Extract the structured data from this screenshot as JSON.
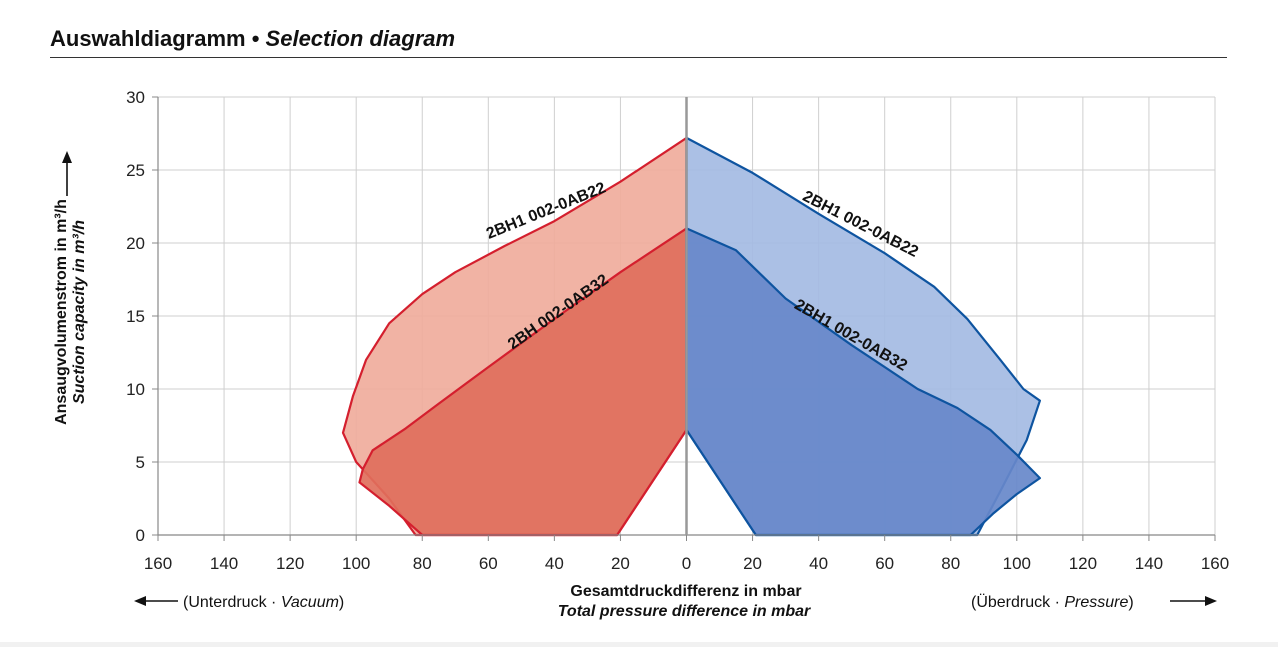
{
  "header": {
    "title_de": "Auswahldiagramm •",
    "title_en": "Selection diagram"
  },
  "chart_data": {
    "type": "area",
    "title": "Auswahldiagramm • Selection diagram",
    "xlabel": "Gesamtdruckdifferenz in mbar",
    "xlabel_en": "Total pressure difference in mbar",
    "ylabel": "Ansaugvolumenstrom in m³/h",
    "ylabel_en": "Suction capacity in m³/h",
    "xlim": [
      -160,
      160
    ],
    "ylim": [
      0,
      30
    ],
    "x_ticks": [
      -160,
      -140,
      -120,
      -100,
      -80,
      -60,
      -40,
      -20,
      0,
      20,
      40,
      60,
      80,
      100,
      120,
      140,
      160
    ],
    "x_tick_labels": [
      "160",
      "140",
      "120",
      "100",
      "80",
      "60",
      "40",
      "20",
      "0",
      "20",
      "40",
      "60",
      "80",
      "100",
      "120",
      "140",
      "160"
    ],
    "y_ticks": [
      0,
      5,
      10,
      15,
      20,
      25,
      30
    ],
    "y_tick_labels": [
      "0",
      "5",
      "10",
      "15",
      "20",
      "25",
      "30"
    ],
    "grid": true,
    "left_caption": {
      "de": "(Unterdruck ·",
      "en": "Vacuum",
      "close": ")"
    },
    "right_caption": {
      "de": "(Überdruck ·",
      "en": "Pressure",
      "close": ")"
    },
    "series": [
      {
        "name": "2BH1 002-0AB22",
        "side": "vacuum",
        "color": "#f0ac9c",
        "stroke": "#d41f2e",
        "points": [
          [
            0,
            27.2
          ],
          [
            -20,
            24.2
          ],
          [
            -40,
            21.5
          ],
          [
            -55,
            19.8
          ],
          [
            -70,
            18.0
          ],
          [
            -80,
            16.5
          ],
          [
            -90,
            14.5
          ],
          [
            -97,
            12.0
          ],
          [
            -101,
            9.5
          ],
          [
            -104,
            7.0
          ],
          [
            -100,
            5.0
          ],
          [
            -90,
            2.5
          ],
          [
            -82,
            0
          ],
          [
            -21,
            0
          ],
          [
            0,
            7.2
          ]
        ]
      },
      {
        "name": "2BH 002-0AB32",
        "side": "vacuum",
        "color": "#e06f5c",
        "stroke": "#d41f2e",
        "points": [
          [
            0,
            21.0
          ],
          [
            -20,
            18.0
          ],
          [
            -40,
            14.8
          ],
          [
            -60,
            11.5
          ],
          [
            -75,
            9.0
          ],
          [
            -85,
            7.3
          ],
          [
            -95,
            5.8
          ],
          [
            -98,
            4.5
          ],
          [
            -99,
            3.6
          ],
          [
            -90,
            2.0
          ],
          [
            -80,
            0
          ],
          [
            -21,
            0
          ],
          [
            0,
            7.2
          ]
        ]
      },
      {
        "name": "2BH1 002-0AB22",
        "side": "pressure",
        "color": "#a4bbe3",
        "stroke": "#0e54a0",
        "points": [
          [
            0,
            27.2
          ],
          [
            20,
            24.8
          ],
          [
            40,
            22.0
          ],
          [
            60,
            19.3
          ],
          [
            75,
            17.0
          ],
          [
            85,
            14.8
          ],
          [
            95,
            12.0
          ],
          [
            102,
            10.0
          ],
          [
            107,
            9.2
          ],
          [
            103,
            6.5
          ],
          [
            95,
            3.0
          ],
          [
            88,
            0
          ],
          [
            21,
            0
          ],
          [
            0,
            7.2
          ]
        ]
      },
      {
        "name": "2BH1 002-0AB32",
        "side": "pressure",
        "color": "#6788ca",
        "stroke": "#0e54a0",
        "points": [
          [
            0,
            21.0
          ],
          [
            15,
            19.5
          ],
          [
            30,
            16.2
          ],
          [
            50,
            13.0
          ],
          [
            70,
            10.0
          ],
          [
            82,
            8.7
          ],
          [
            92,
            7.2
          ],
          [
            100,
            5.5
          ],
          [
            107,
            3.9
          ],
          [
            100,
            2.8
          ],
          [
            93,
            1.5
          ],
          [
            86,
            0
          ],
          [
            21,
            0
          ],
          [
            0,
            7.2
          ]
        ]
      }
    ],
    "labels": [
      {
        "text": "2BH1 002-0AB22",
        "x": -42,
        "y": 21.9,
        "angle": -22
      },
      {
        "text": "2BH 002-0AB32",
        "x": -38,
        "y": 15.0,
        "angle": -35
      },
      {
        "text": "2BH1 002-0AB22",
        "x": 52,
        "y": 21.0,
        "angle": 27
      },
      {
        "text": "2BH1 002-0AB32",
        "x": 49,
        "y": 13.4,
        "angle": 30
      }
    ]
  }
}
